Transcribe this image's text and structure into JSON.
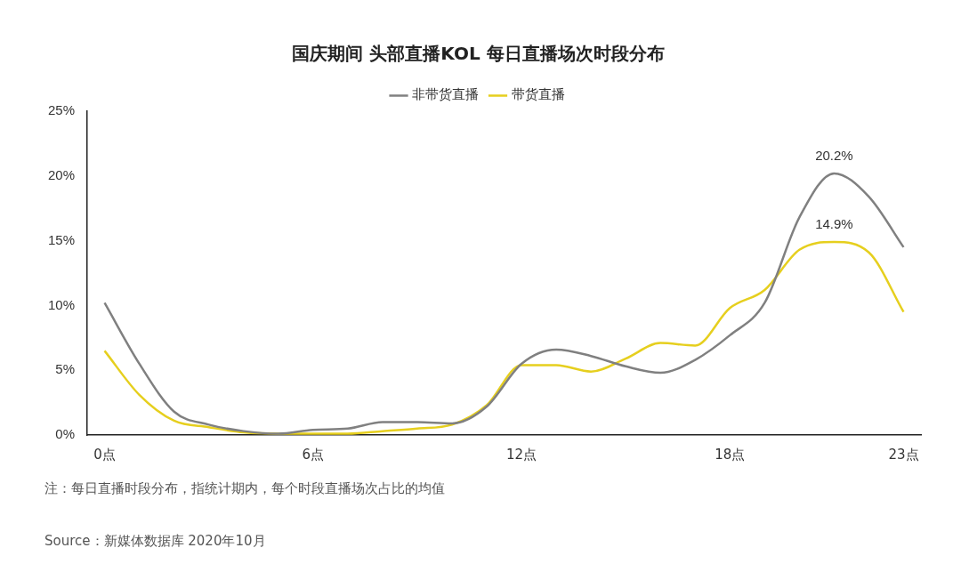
{
  "chart_data": {
    "type": "line",
    "title": "国庆期间 头部直播KOL 每日直播场次时段分布",
    "categories": [
      "0点",
      null,
      null,
      null,
      null,
      null,
      "6点",
      null,
      null,
      null,
      null,
      null,
      "12点",
      null,
      null,
      null,
      null,
      null,
      "18点",
      null,
      null,
      null,
      null,
      "23点"
    ],
    "series": [
      {
        "name": "非带货直播",
        "color": "#808080",
        "values": [
          10.2,
          5.5,
          1.8,
          0.8,
          0.3,
          0.1,
          0.4,
          0.5,
          1.0,
          1.0,
          0.9,
          2.2,
          5.5,
          6.6,
          6.1,
          5.3,
          4.8,
          5.8,
          7.7,
          10.2,
          16.8,
          20.2,
          18.4,
          14.5
        ],
        "value_labels": [
          null,
          null,
          null,
          null,
          null,
          null,
          null,
          null,
          null,
          null,
          null,
          null,
          null,
          null,
          null,
          null,
          null,
          null,
          null,
          null,
          null,
          "20.2%",
          null,
          null
        ]
      },
      {
        "name": "带货直播",
        "color": "#e6cf1e",
        "values": [
          6.5,
          3.1,
          1.1,
          0.6,
          0.2,
          0.1,
          0.1,
          0.1,
          0.3,
          0.5,
          0.8,
          2.3,
          5.4,
          5.4,
          4.9,
          5.9,
          7.1,
          6.9,
          9.8,
          11.2,
          14.3,
          14.9,
          14.1,
          9.5
        ],
        "value_labels": [
          null,
          null,
          null,
          null,
          null,
          null,
          null,
          null,
          null,
          null,
          null,
          null,
          null,
          null,
          null,
          null,
          null,
          null,
          null,
          null,
          null,
          "14.9%",
          null,
          null
        ]
      }
    ],
    "ylim": [
      0,
      25
    ],
    "yticks": [
      {
        "value": 0,
        "label": "0%"
      },
      {
        "value": 5,
        "label": "5%"
      },
      {
        "value": 10,
        "label": "10%"
      },
      {
        "value": 15,
        "label": "15%"
      },
      {
        "value": 20,
        "label": "20%"
      },
      {
        "value": 25,
        "label": "25%"
      }
    ],
    "grid": false,
    "legend": "top",
    "marker": "none",
    "line_style": "solid",
    "annotations": [
      "注：每日直播时段分布，指统计期内，每个时段直播场次占比的均值",
      "Source：新媒体数据库 2020年10月"
    ]
  }
}
